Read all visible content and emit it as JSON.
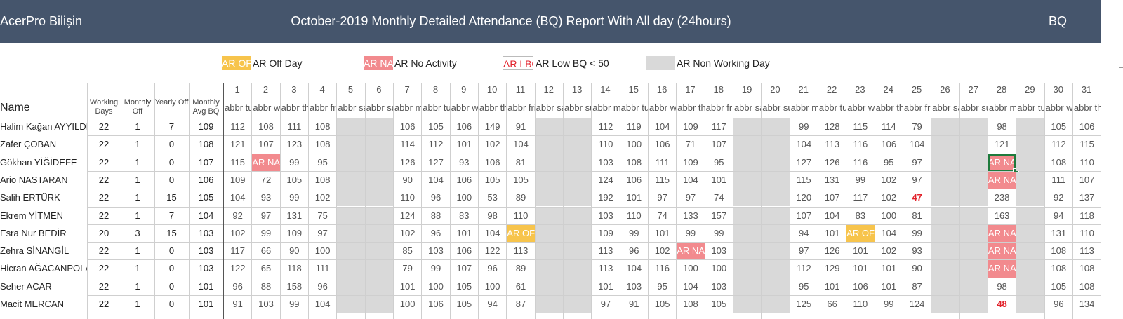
{
  "header": {
    "company": "AcerPro Bilişin",
    "title": "October-2019 Monthly Detailed Attendance (BQ) Report With All day (24hours)",
    "code": "BQ"
  },
  "legend": [
    {
      "swatch": "AR OFF",
      "label": "AR  Off Day",
      "kind": "off"
    },
    {
      "swatch": "AR NA",
      "label": "AR  No Activity",
      "kind": "na"
    },
    {
      "swatch": "AR LBQ",
      "label": "AR  Low BQ < 50",
      "kind": "lbq"
    },
    {
      "swatch": "",
      "label": "AR  Non Working Day",
      "kind": "nw"
    }
  ],
  "columns": {
    "name": "Name",
    "working_days": "Working Days",
    "monthly_off": "Monthly Off",
    "yearly_off": "Yearly Off",
    "monthly_avg_bq": "Monthly Avg BQ"
  },
  "days": [
    {
      "num": "1",
      "abbr": "abbr tue",
      "nw": false
    },
    {
      "num": "2",
      "abbr": "abbr wed",
      "nw": false
    },
    {
      "num": "3",
      "abbr": "abbr thu",
      "nw": false
    },
    {
      "num": "4",
      "abbr": "abbr fri",
      "nw": false
    },
    {
      "num": "5",
      "abbr": "abbr sat",
      "nw": true
    },
    {
      "num": "6",
      "abbr": "abbr sun",
      "nw": true
    },
    {
      "num": "7",
      "abbr": "abbr mon",
      "nw": false
    },
    {
      "num": "8",
      "abbr": "abbr tue",
      "nw": false
    },
    {
      "num": "9",
      "abbr": "abbr wed",
      "nw": false
    },
    {
      "num": "10",
      "abbr": "abbr thu",
      "nw": false
    },
    {
      "num": "11",
      "abbr": "abbr fri",
      "nw": false
    },
    {
      "num": "12",
      "abbr": "abbr sat",
      "nw": true
    },
    {
      "num": "13",
      "abbr": "abbr sun",
      "nw": true
    },
    {
      "num": "14",
      "abbr": "abbr mon",
      "nw": false
    },
    {
      "num": "15",
      "abbr": "abbr tue",
      "nw": false
    },
    {
      "num": "16",
      "abbr": "abbr wed",
      "nw": false
    },
    {
      "num": "17",
      "abbr": "abbr thu",
      "nw": false
    },
    {
      "num": "18",
      "abbr": "abbr fri",
      "nw": false
    },
    {
      "num": "19",
      "abbr": "abbr sat",
      "nw": true
    },
    {
      "num": "20",
      "abbr": "abbr sun",
      "nw": true
    },
    {
      "num": "21",
      "abbr": "abbr mon",
      "nw": false
    },
    {
      "num": "22",
      "abbr": "abbr tue",
      "nw": false
    },
    {
      "num": "23",
      "abbr": "abbr wed",
      "nw": false
    },
    {
      "num": "24",
      "abbr": "abbr thu",
      "nw": false
    },
    {
      "num": "25",
      "abbr": "abbr fri",
      "nw": false
    },
    {
      "num": "26",
      "abbr": "abbr sat",
      "nw": true
    },
    {
      "num": "27",
      "abbr": "abbr sun",
      "nw": true
    },
    {
      "num": "28",
      "abbr": "abbr mon",
      "nw": false
    },
    {
      "num": "29",
      "abbr": "abbr tue",
      "nw": true
    },
    {
      "num": "30",
      "abbr": "abbr wed",
      "nw": false
    },
    {
      "num": "31",
      "abbr": "abbr thu",
      "nw": false
    }
  ],
  "rows": [
    {
      "name": "Halim Kağan AYYILDIZ",
      "wd": "22",
      "mo": "1",
      "yo": "7",
      "avg": "109",
      "d": [
        "112",
        "108",
        "111",
        "108",
        "",
        "",
        "106",
        "105",
        "106",
        "149",
        "91",
        "",
        "",
        "112",
        "119",
        "104",
        "109",
        "117",
        "",
        "",
        "99",
        "128",
        "115",
        "114",
        "79",
        "",
        "",
        "98",
        "",
        "105",
        "106"
      ]
    },
    {
      "name": "Zafer ÇOBAN",
      "wd": "22",
      "mo": "1",
      "yo": "0",
      "avg": "108",
      "d": [
        "121",
        "107",
        "123",
        "108",
        "",
        "",
        "114",
        "112",
        "101",
        "102",
        "104",
        "",
        "",
        "110",
        "100",
        "106",
        "71",
        "107",
        "",
        "",
        "104",
        "113",
        "116",
        "106",
        "104",
        "",
        "",
        "121",
        "",
        "112",
        "115"
      ]
    },
    {
      "name": "Gökhan YİĞİDEFE",
      "wd": "22",
      "mo": "1",
      "yo": "0",
      "avg": "107",
      "d": [
        "115",
        "AR NA",
        "99",
        "95",
        "",
        "",
        "126",
        "127",
        "93",
        "106",
        "81",
        "",
        "",
        "103",
        "108",
        "111",
        "109",
        "95",
        "",
        "",
        "127",
        "126",
        "116",
        "95",
        "97",
        "",
        "",
        "AR NA",
        "",
        "108",
        "110"
      ]
    },
    {
      "name": "Ario NASTARAN",
      "wd": "22",
      "mo": "1",
      "yo": "0",
      "avg": "106",
      "d": [
        "109",
        "72",
        "105",
        "108",
        "",
        "",
        "90",
        "104",
        "106",
        "105",
        "105",
        "",
        "",
        "124",
        "106",
        "115",
        "104",
        "101",
        "",
        "",
        "115",
        "131",
        "99",
        "102",
        "97",
        "",
        "",
        "AR NA",
        "",
        "111",
        "107"
      ]
    },
    {
      "name": "Salih ERTÜRK",
      "wd": "22",
      "mo": "1",
      "yo": "15",
      "avg": "105",
      "d": [
        "104",
        "93",
        "99",
        "102",
        "",
        "",
        "110",
        "96",
        "100",
        "53",
        "89",
        "",
        "",
        "192",
        "101",
        "97",
        "97",
        "74",
        "",
        "",
        "120",
        "107",
        "117",
        "102",
        "47",
        "",
        "",
        "238",
        "",
        "92",
        "137"
      ]
    },
    {
      "name": "Ekrem YİTMEN",
      "wd": "22",
      "mo": "1",
      "yo": "7",
      "avg": "104",
      "d": [
        "92",
        "97",
        "131",
        "75",
        "",
        "",
        "124",
        "88",
        "83",
        "98",
        "110",
        "",
        "",
        "103",
        "110",
        "74",
        "133",
        "157",
        "",
        "",
        "107",
        "104",
        "83",
        "100",
        "81",
        "",
        "",
        "163",
        "",
        "94",
        "118"
      ]
    },
    {
      "name": "Esra Nur BEDİR",
      "wd": "20",
      "mo": "3",
      "yo": "15",
      "avg": "103",
      "d": [
        "102",
        "99",
        "109",
        "97",
        "",
        "",
        "102",
        "96",
        "101",
        "104",
        "AR OFF",
        "",
        "",
        "109",
        "99",
        "101",
        "99",
        "99",
        "",
        "",
        "94",
        "101",
        "AR OFF",
        "104",
        "99",
        "",
        "",
        "AR NA",
        "",
        "131",
        "110"
      ]
    },
    {
      "name": "Zehra SİNANGİL",
      "wd": "22",
      "mo": "1",
      "yo": "0",
      "avg": "103",
      "d": [
        "117",
        "66",
        "90",
        "100",
        "",
        "",
        "85",
        "103",
        "106",
        "122",
        "113",
        "",
        "",
        "113",
        "96",
        "102",
        "AR NA",
        "103",
        "",
        "",
        "97",
        "126",
        "101",
        "102",
        "93",
        "",
        "",
        "AR NA",
        "",
        "108",
        "113"
      ]
    },
    {
      "name": "Hicran AĞACANPOLAT",
      "wd": "22",
      "mo": "1",
      "yo": "0",
      "avg": "103",
      "d": [
        "122",
        "65",
        "118",
        "111",
        "",
        "",
        "79",
        "99",
        "107",
        "96",
        "89",
        "",
        "",
        "113",
        "104",
        "116",
        "100",
        "100",
        "",
        "",
        "112",
        "129",
        "101",
        "101",
        "90",
        "",
        "",
        "AR NA",
        "",
        "108",
        "108"
      ]
    },
    {
      "name": "Seher ACAR",
      "wd": "22",
      "mo": "1",
      "yo": "0",
      "avg": "101",
      "d": [
        "96",
        "88",
        "158",
        "96",
        "",
        "",
        "101",
        "100",
        "105",
        "100",
        "61",
        "",
        "",
        "101",
        "103",
        "95",
        "104",
        "103",
        "",
        "",
        "95",
        "101",
        "106",
        "101",
        "87",
        "",
        "",
        "98",
        "",
        "105",
        "108"
      ]
    },
    {
      "name": "Macit MERCAN",
      "wd": "22",
      "mo": "1",
      "yo": "0",
      "avg": "101",
      "d": [
        "91",
        "103",
        "99",
        "104",
        "",
        "",
        "100",
        "106",
        "105",
        "94",
        "87",
        "",
        "",
        "97",
        "91",
        "105",
        "108",
        "105",
        "",
        "",
        "125",
        "66",
        "110",
        "99",
        "124",
        "",
        "",
        "48",
        "",
        "96",
        "134"
      ]
    }
  ]
}
